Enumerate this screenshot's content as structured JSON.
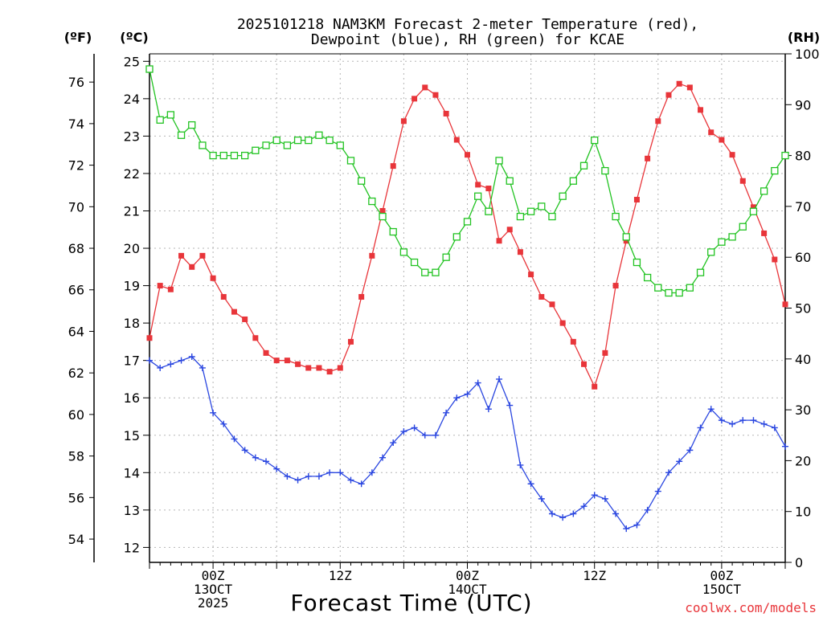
{
  "chart_data": {
    "type": "line",
    "title_line1": "2025101218 NAM3KM Forecast 2-meter Temperature (red),",
    "title_line2": "Dewpoint (blue), RH (green) for KCAE",
    "xlabel": "Forecast Time (UTC)",
    "credit": "coolwx.com/models",
    "axis_units": {
      "left_f": "(ºF)",
      "left_c": "(ºC)",
      "right_rh": "(RH)"
    },
    "x_range_hours": [
      0,
      60
    ],
    "x_tick_labels": [
      {
        "hour": 6,
        "lines": [
          "00Z",
          "13OCT",
          "2025"
        ]
      },
      {
        "hour": 18,
        "lines": [
          "12Z"
        ]
      },
      {
        "hour": 30,
        "lines": [
          "00Z",
          "14OCT"
        ]
      },
      {
        "hour": 42,
        "lines": [
          "12Z"
        ]
      },
      {
        "hour": 54,
        "lines": [
          "00Z",
          "15OCT"
        ]
      }
    ],
    "celsius_axis": {
      "range": [
        11.6,
        25.2
      ],
      "ticks": [
        "12",
        "13",
        "14",
        "15",
        "16",
        "17",
        "18",
        "19",
        "20",
        "21",
        "22",
        "23",
        "24",
        "25"
      ]
    },
    "fahrenheit_ticks": [
      "54",
      "56",
      "58",
      "60",
      "62",
      "64",
      "66",
      "68",
      "70",
      "72",
      "74",
      "76"
    ],
    "rh_axis": {
      "range": [
        0,
        100
      ],
      "ticks": [
        "0",
        "10",
        "20",
        "30",
        "40",
        "50",
        "60",
        "70",
        "80",
        "90",
        "100"
      ]
    },
    "x_hours": [
      0,
      1,
      2,
      3,
      4,
      5,
      6,
      7,
      8,
      9,
      10,
      11,
      12,
      13,
      14,
      15,
      16,
      17,
      18,
      19,
      20,
      21,
      22,
      23,
      24,
      25,
      26,
      27,
      28,
      29,
      30,
      31,
      32,
      33,
      34,
      35,
      36,
      37,
      38,
      39,
      40,
      41,
      42,
      43,
      44,
      45,
      46,
      47,
      48,
      49,
      50,
      51,
      52,
      53,
      54,
      55,
      56,
      57,
      58,
      59,
      60
    ],
    "series": [
      {
        "name": "2-meter Temperature",
        "axis": "celsius",
        "color": "#e8353a",
        "marker": "filled-square",
        "values": [
          17.6,
          19.0,
          18.9,
          19.8,
          19.5,
          19.8,
          19.2,
          18.7,
          18.3,
          18.1,
          17.6,
          17.2,
          17.0,
          17.0,
          16.9,
          16.8,
          16.8,
          16.7,
          16.8,
          17.5,
          18.7,
          19.8,
          21.0,
          22.2,
          23.4,
          24.0,
          24.3,
          24.1,
          23.6,
          22.9,
          22.5,
          21.7,
          21.6,
          20.2,
          20.5,
          19.9,
          19.3,
          18.7,
          18.5,
          18.0,
          17.5,
          16.9,
          16.3,
          17.2,
          19.0,
          20.2,
          21.3,
          22.4,
          23.4,
          24.1,
          24.4,
          24.3,
          23.7,
          23.1,
          22.9,
          22.5,
          21.8,
          21.1,
          20.4,
          19.7,
          18.5
        ]
      },
      {
        "name": "Dewpoint",
        "axis": "celsius",
        "color": "#2b47e0",
        "marker": "plus",
        "values": [
          17.0,
          16.8,
          16.9,
          17.0,
          17.1,
          16.8,
          15.6,
          15.3,
          14.9,
          14.6,
          14.4,
          14.3,
          14.1,
          13.9,
          13.8,
          13.9,
          13.9,
          14.0,
          14.0,
          13.8,
          13.7,
          14.0,
          14.4,
          14.8,
          15.1,
          15.2,
          15.0,
          15.0,
          15.6,
          16.0,
          16.1,
          16.4,
          15.7,
          16.5,
          15.8,
          14.2,
          13.7,
          13.3,
          12.9,
          12.8,
          12.9,
          13.1,
          13.4,
          13.3,
          12.9,
          12.5,
          12.6,
          13.0,
          13.5,
          14.0,
          14.3,
          14.6,
          15.2,
          15.7,
          15.4,
          15.3,
          15.4,
          15.4,
          15.3,
          15.2,
          14.7
        ]
      },
      {
        "name": "RH",
        "axis": "rh",
        "color": "#22c322",
        "marker": "open-square",
        "values": [
          97,
          87,
          88,
          84,
          86,
          82,
          80,
          80,
          80,
          80,
          81,
          82,
          83,
          82,
          83,
          83,
          84,
          83,
          82,
          79,
          75,
          71,
          68,
          65,
          61,
          59,
          57,
          57,
          60,
          64,
          67,
          72,
          69,
          79,
          75,
          68,
          69,
          70,
          68,
          72,
          75,
          78,
          83,
          77,
          68,
          64,
          59,
          56,
          54,
          53,
          53,
          54,
          57,
          61,
          63,
          64,
          66,
          69,
          73,
          77,
          80
        ]
      }
    ]
  }
}
